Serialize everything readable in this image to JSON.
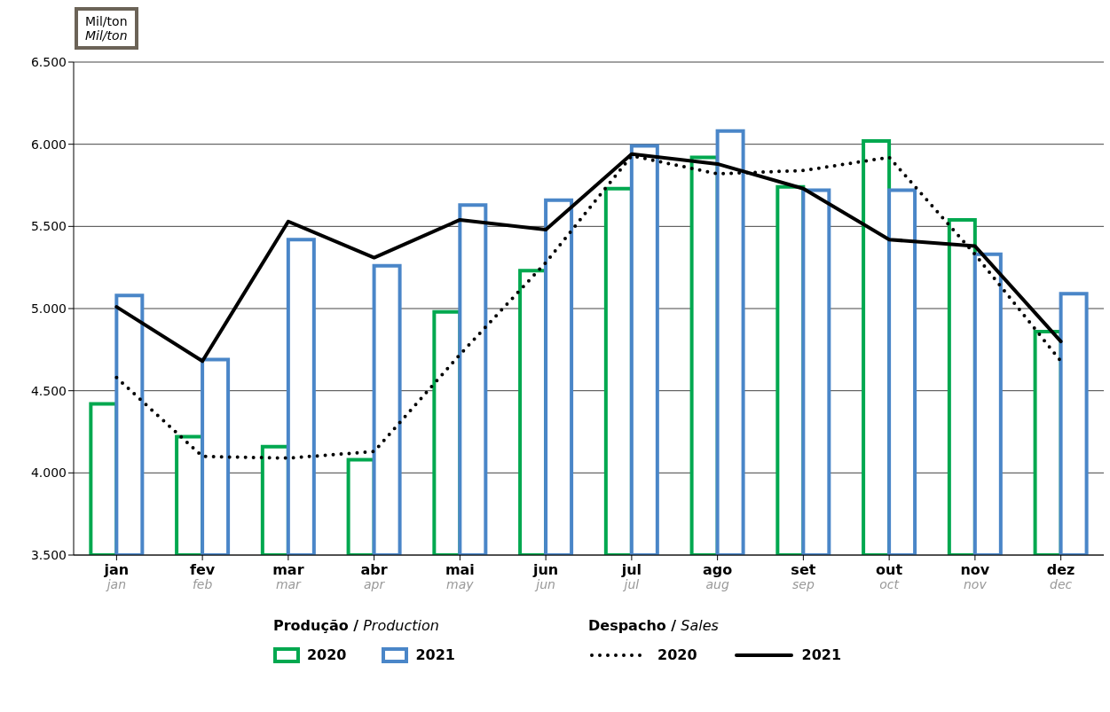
{
  "chart_data": {
    "type": "bar",
    "ylabel": "Mil/ton\nMil/ton",
    "categories": [
      "jan\njan",
      "fev\nfeb",
      "mar\nmar",
      "abr\napr",
      "mai\nmay",
      "jun\njun",
      "jul\njul",
      "ago\naug",
      "set\nsep",
      "out\noct",
      "nov\nnov",
      "dez\ndec"
    ],
    "series": [
      {
        "name": "2020",
        "color": "#00a84f",
        "values": [
          4420,
          4220,
          4160,
          4080,
          4980,
          5230,
          5730,
          5920,
          5740,
          6020,
          5540,
          4860
        ]
      },
      {
        "name": "2021",
        "color": "#4a86c8",
        "values": [
          5080,
          4690,
          5420,
          5260,
          5630,
          5660,
          5990,
          6080,
          5720,
          5720,
          5330,
          5090
        ]
      },
      {
        "name": "2020",
        "type": "line",
        "line_style": "dotted",
        "color": "#000000",
        "values": [
          4580,
          4100,
          4090,
          4130,
          4720,
          5280,
          5930,
          5820,
          5840,
          5920,
          5330,
          4680
        ]
      },
      {
        "name": "2021",
        "type": "line",
        "line_style": "solid",
        "color": "#000000",
        "values": [
          5010,
          4680,
          5530,
          5310,
          5540,
          5480,
          5940,
          5880,
          5730,
          5420,
          5380,
          4800
        ]
      }
    ],
    "ylim": [
      3500,
      6500
    ],
    "yticks": [
      {
        "value": 3500,
        "label": "3.500"
      },
      {
        "value": 4000,
        "label": "4.000"
      },
      {
        "value": 4500,
        "label": "4.500"
      },
      {
        "value": 5000,
        "label": "5.000"
      },
      {
        "value": 5500,
        "label": "5.500"
      },
      {
        "value": 6000,
        "label": "6.000"
      },
      {
        "value": 6500,
        "label": "6.500"
      }
    ],
    "grid": "y",
    "legend": "bottom",
    "marker": "none",
    "annotations": [
      "**Produção /** Production",
      "**Despacho /** Sales"
    ]
  }
}
